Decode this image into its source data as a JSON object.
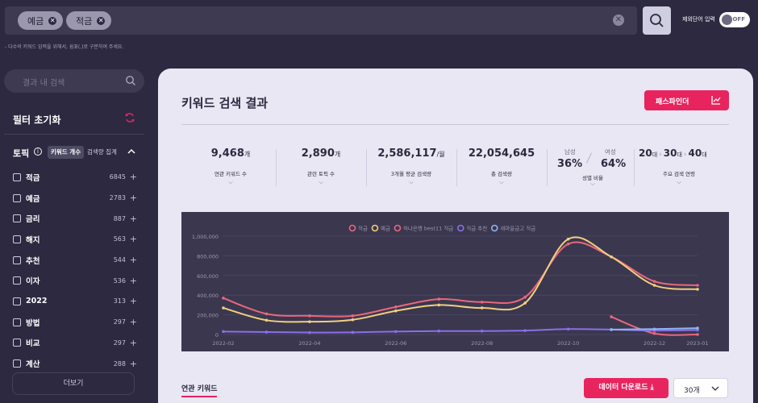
{
  "search": {
    "chips": [
      "예금",
      "적금"
    ],
    "exclude_label": "제외단어 입력",
    "toggle_label": "OFF",
    "hint": "- 다수의 키워드 입력을 위해서, 쉼표(,)로 구분하여 주세요."
  },
  "sidebar": {
    "search_placeholder": "결과 내 검색",
    "filter_reset": "필터 초기화",
    "topic_title": "토픽",
    "tab_keyword_count": "키워드 개수",
    "tab_search_volume": "검색량 집계",
    "items": [
      {
        "name": "적금",
        "count": "6845"
      },
      {
        "name": "예금",
        "count": "2783"
      },
      {
        "name": "금리",
        "count": "887"
      },
      {
        "name": "해지",
        "count": "563"
      },
      {
        "name": "추천",
        "count": "544"
      },
      {
        "name": "이자",
        "count": "536"
      },
      {
        "name": "2022",
        "count": "313"
      },
      {
        "name": "방법",
        "count": "297"
      },
      {
        "name": "비교",
        "count": "297"
      },
      {
        "name": "계산",
        "count": "288"
      }
    ],
    "more_button": "더보기"
  },
  "main": {
    "title": "키워드 검색 결과",
    "pass_button": "패스파인더",
    "stats": [
      {
        "value": "9,468",
        "unit": "개",
        "label": "연관 키워드 수"
      },
      {
        "value": "2,890",
        "unit": "개",
        "label": "관련 토픽 수"
      },
      {
        "value": "2,586,117",
        "unit": "/월",
        "label": "3개월 평균 검색량"
      },
      {
        "value": "22,054,645",
        "unit": "",
        "label": "총 검색량"
      }
    ],
    "gender": {
      "male_label": "남성",
      "female_label": "여성",
      "male_pct": "36%",
      "female_pct": "64%",
      "label": "성별 비율"
    },
    "age": {
      "ages": [
        "20",
        "30",
        "40"
      ],
      "unit": "대",
      "label": "주요 검색 연령"
    },
    "related_tab": "연관 키워드",
    "download_button": "데이터 다운로드",
    "count_select": "30개"
  },
  "colors": {
    "accent": "#e8245e",
    "panel": "#e9e7f3",
    "bg": "#2c2940"
  },
  "chart_data": {
    "type": "line",
    "x": [
      "2022-02",
      "2022-03",
      "2022-04",
      "2022-05",
      "2022-06",
      "2022-07",
      "2022-08",
      "2022-09",
      "2022-10",
      "2022-11",
      "2022-12",
      "2023-01"
    ],
    "x_tick_labels": [
      "2022-02",
      "2022-04",
      "2022-06",
      "2022-08",
      "2022-10",
      "2022-12",
      "2023-01"
    ],
    "ylim": [
      0,
      1000000
    ],
    "y_ticks": [
      "0",
      "200,000",
      "400,000",
      "600,000",
      "800,000",
      "1,000,000"
    ],
    "legend_position": "top",
    "series": [
      {
        "name": "적금",
        "color": "#e9677e",
        "values": [
          370000,
          210000,
          190000,
          190000,
          280000,
          360000,
          330000,
          380000,
          920000,
          790000,
          540000,
          500000
        ]
      },
      {
        "name": "예금",
        "color": "#f0cf7f",
        "values": [
          270000,
          145000,
          130000,
          150000,
          240000,
          300000,
          270000,
          320000,
          970000,
          790000,
          500000,
          460000
        ]
      },
      {
        "name": "하나은행 best11 적금",
        "color": "#e9677e",
        "values": [
          null,
          null,
          null,
          null,
          null,
          null,
          null,
          null,
          null,
          180000,
          10000,
          0
        ]
      },
      {
        "name": "적금 추천",
        "color": "#8b6fe8",
        "values": [
          30000,
          25000,
          20000,
          22000,
          30000,
          35000,
          35000,
          40000,
          55000,
          50000,
          40000,
          45000
        ]
      },
      {
        "name": "새마을금고 적금",
        "color": "#8fb6f0",
        "values": [
          null,
          null,
          null,
          null,
          null,
          null,
          null,
          null,
          null,
          50000,
          55000,
          65000
        ]
      }
    ]
  }
}
